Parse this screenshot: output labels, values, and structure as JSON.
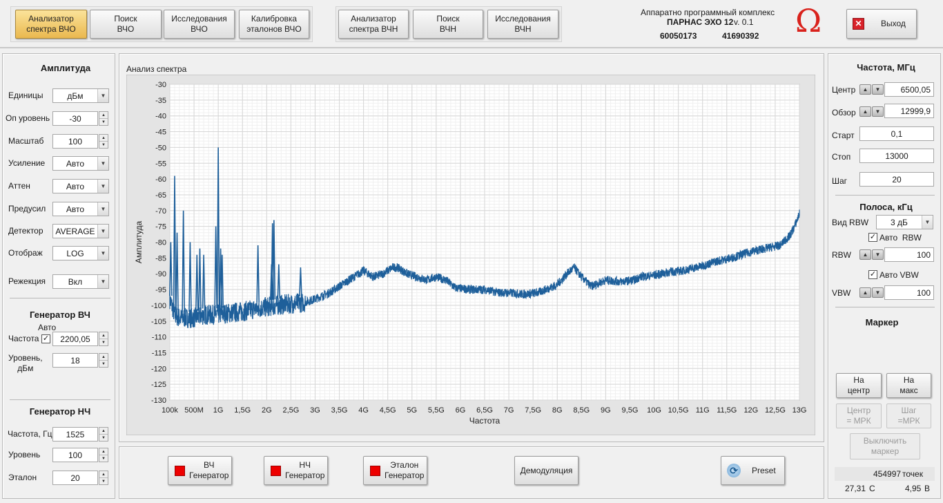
{
  "tabs": [
    {
      "label": "Анализатор\nспектра ВЧО"
    },
    {
      "label": "Поиск\nВЧО"
    },
    {
      "label": "Исследования\nВЧО"
    },
    {
      "label": "Калибровка\nэталонов ВЧО"
    },
    {
      "label": "Анализатор\nспектра ВЧН"
    },
    {
      "label": "Поиск\nВЧН"
    },
    {
      "label": "Исследования\nВЧН"
    }
  ],
  "header": {
    "complex": "Аппаратно программный комплекс",
    "product": "ПАРНАС ЭХО 12",
    "version": "v. 0.1",
    "serial1": "60050173",
    "serial2": "41690392",
    "logo": "Ω",
    "exit_label": "Выход"
  },
  "left": {
    "amp_title": "Амплитуда",
    "rows": [
      {
        "label": "Единицы",
        "value": "дБм"
      },
      {
        "label": "Оп уровень",
        "value": "-30"
      },
      {
        "label": "Масштаб",
        "value": "100"
      },
      {
        "label": "Усиление",
        "value": "Авто"
      },
      {
        "label": "Аттен",
        "value": "Авто"
      },
      {
        "label": "Предусил",
        "value": "Авто"
      },
      {
        "label": "Детектор",
        "value": "AVERAGE"
      },
      {
        "label": "Отображ",
        "value": "LOG"
      },
      {
        "label": "Режекция",
        "value": "Вкл"
      }
    ],
    "gen_hf_title": "Генератор ВЧ",
    "auto_label": "Авто",
    "gen_hf_freq_label": "Частота",
    "gen_hf_freq": "2200,05",
    "gen_hf_level_label": "Уровень,\nдБм",
    "gen_hf_level": "18",
    "gen_lf_title": "Генератор НЧ",
    "gen_lf_freq_label": "Частота, Гц",
    "gen_lf_freq": "1525",
    "gen_lf_level_label": "Уровень",
    "gen_lf_level": "100",
    "gen_lf_ref_label": "Эталон",
    "gen_lf_ref": "20"
  },
  "chart_title": "Анализ спектра",
  "chart_data": {
    "type": "line",
    "xlabel": "Частота",
    "ylabel": "Амплитуда",
    "ylim": [
      -130,
      -30
    ],
    "yticks": [
      "-30",
      "-35",
      "-40",
      "-45",
      "-50",
      "-55",
      "-60",
      "-65",
      "-70",
      "-75",
      "-80",
      "-85",
      "-90",
      "-95",
      "-100",
      "-105",
      "-110",
      "-115",
      "-120",
      "-125",
      "-130"
    ],
    "xlim": [
      0.0001,
      13
    ],
    "xticks": [
      "100k",
      "500M",
      "1G",
      "1,5G",
      "2G",
      "2,5G",
      "3G",
      "3,5G",
      "4G",
      "4,5G",
      "5G",
      "5,5G",
      "6G",
      "6,5G",
      "7G",
      "7,5G",
      "8G",
      "8,5G",
      "9G",
      "9,5G",
      "10G",
      "10,5G",
      "11G",
      "11,5G",
      "12G",
      "12,5G",
      "13G"
    ],
    "grid": true,
    "color": "#1e5f9a",
    "series": [
      {
        "x": [
          0.0001,
          0.1,
          0.2,
          0.3,
          0.5,
          0.7,
          0.9,
          1.2,
          1.5,
          1.8,
          2.0,
          2.2,
          2.5,
          2.8,
          3.0,
          3.3,
          3.6,
          3.9,
          4.0,
          4.2,
          4.4,
          4.6,
          4.7,
          4.9,
          5.1,
          5.3,
          5.5,
          5.7,
          5.9,
          6.2,
          6.5,
          6.8,
          7.0,
          7.3,
          7.6,
          8.0,
          8.2,
          8.35,
          8.5,
          8.7,
          9.0,
          9.3,
          9.6,
          9.7,
          10.0,
          10.3,
          10.6,
          11.0,
          11.3,
          11.6,
          12.0,
          12.3,
          12.6,
          12.8,
          12.9,
          13.0
        ],
        "y": [
          -98,
          -103,
          -104,
          -104,
          -104,
          -103,
          -103,
          -102.5,
          -102,
          -101,
          -100.5,
          -100,
          -99.5,
          -99,
          -98,
          -96,
          -93,
          -90,
          -89,
          -91,
          -90,
          -88,
          -88,
          -90,
          -91,
          -92,
          -91,
          -92,
          -94.5,
          -95,
          -95,
          -96,
          -96,
          -96.5,
          -96,
          -93.5,
          -90,
          -88,
          -91,
          -94,
          -92,
          -92.5,
          -92,
          -91,
          -90.5,
          -89.5,
          -89,
          -87.5,
          -86,
          -85,
          -83,
          -82,
          -81,
          -78,
          -75,
          -71
        ]
      },
      {
        "name": "peaks",
        "x": [
          0.02,
          0.1,
          0.15,
          0.28,
          0.42,
          0.56,
          0.62,
          0.7,
          0.95,
          1.0,
          1.05,
          1.08,
          1.82,
          2.1,
          2.12,
          2.15,
          2.25,
          2.7
        ],
        "y": [
          -80,
          -59,
          -77,
          -70,
          -80,
          -84,
          -82,
          -84,
          -75,
          -50,
          -82,
          -84,
          -81,
          -87,
          -74,
          -73,
          -87,
          -88
        ]
      }
    ]
  },
  "right": {
    "freq_title": "Частота, МГц",
    "center_label": "Центр",
    "center": "6500,05",
    "span_label": "Обзор",
    "span": "12999,9",
    "start_label": "Старт",
    "start": "0,1",
    "stop_label": "Стоп",
    "stop": "13000",
    "step_label": "Шаг",
    "step": "20",
    "bw_title": "Полоса, кГц",
    "rbw_type_label": "Вид RBW",
    "rbw_type": "3 дБ",
    "auto_rbw_label": "Авто  RBW",
    "rbw_label": "RBW",
    "rbw": "100",
    "auto_vbw_label": "Авто VBW",
    "vbw_label": "VBW",
    "vbw": "100",
    "marker_title": "Маркер",
    "to_center": "На\nцентр",
    "to_max": "На\nмакс",
    "center_mrk": "Центр\n= МРК",
    "step_mrk": "Шаг\n=МРК",
    "marker_off": "Выключить\nмаркер",
    "points": "454997",
    "points_label": "точек",
    "temp": "27,31",
    "temp_unit": "С",
    "volt": "4,95",
    "volt_unit": "В"
  },
  "bottom": {
    "hf_gen": "ВЧ\nГенератор",
    "lf_gen": "НЧ\nГенератор",
    "ref_gen": "Эталон\nГенератор",
    "demod": "Демодуляция",
    "preset": "Preset"
  }
}
